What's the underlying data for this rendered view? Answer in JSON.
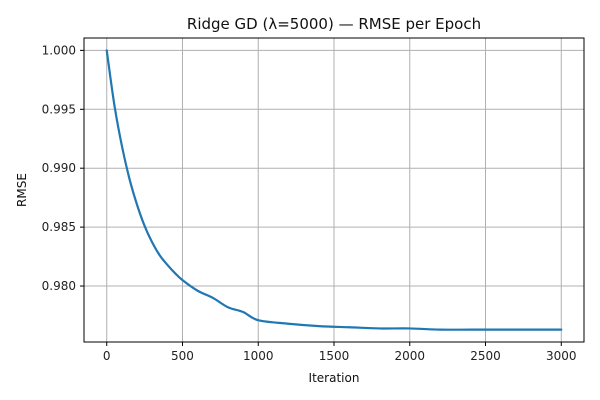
{
  "chart_data": {
    "type": "line",
    "title": "Ridge GD (λ=5000) — RMSE per Epoch",
    "xlabel": "Iteration",
    "ylabel": "RMSE",
    "xlim": [
      -150,
      3150
    ],
    "ylim": [
      0.97525,
      1.00105
    ],
    "xticks": [
      0,
      500,
      1000,
      1500,
      2000,
      2500,
      3000
    ],
    "xtick_labels": [
      "0",
      "500",
      "1000",
      "1500",
      "2000",
      "2500",
      "3000"
    ],
    "yticks": [
      0.98,
      0.985,
      0.99,
      0.995,
      1.0
    ],
    "ytick_labels": [
      "0.980",
      "0.985",
      "0.990",
      "0.995",
      "1.000"
    ],
    "grid": true,
    "series": [
      {
        "color": "#1f77b4",
        "x": [
          0,
          50,
          100,
          150,
          200,
          250,
          300,
          350,
          400,
          450,
          500,
          600,
          700,
          800,
          900,
          1000,
          1200,
          1400,
          1600,
          1800,
          2000,
          2200,
          2400,
          2600,
          2800,
          3000
        ],
        "y": [
          1.0,
          0.9954,
          0.9919,
          0.9891,
          0.9869,
          0.9851,
          0.9837,
          0.9826,
          0.9818,
          0.9811,
          0.9805,
          0.9796,
          0.979,
          0.9782,
          0.9778,
          0.9771,
          0.9768,
          0.9766,
          0.9765,
          0.9764,
          0.9764,
          0.9763,
          0.9763,
          0.9763,
          0.9763,
          0.9763
        ]
      }
    ]
  }
}
